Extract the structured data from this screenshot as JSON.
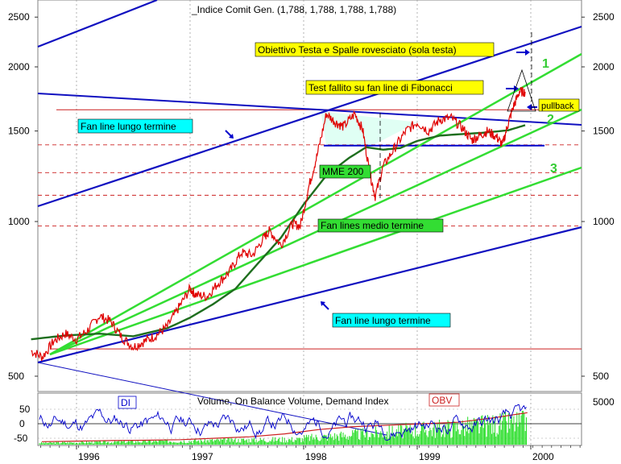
{
  "colors": {
    "price": "#e00000",
    "ema": "#1e6e1e",
    "fan_long": "#1010c0",
    "fan_medium": "#33dd33",
    "resistance": "#cc2020",
    "neckline": "#0000cc",
    "label_yellow": "#ffff00",
    "label_cyan": "#00ffff",
    "label_green": "#33dd33",
    "demand": "#0000cc",
    "volume": "#22dd22",
    "obv": "#cc2020"
  },
  "chart_data": [
    {
      "type": "line",
      "title": "_Indice Comit Gen. (1,788, 1,788, 1,788, 1,788)",
      "scale": "log",
      "ylim": [
        480,
        2750
      ],
      "y_ticks": [
        500,
        1000,
        1500,
        2000,
        2500
      ],
      "x_ticks": [
        "1996",
        "1997",
        "1998",
        "1999",
        "2000"
      ],
      "grid": true,
      "series": [
        {
          "name": "MME 200",
          "points": [
            [
              1995.6,
              590
            ],
            [
              1995.9,
              600
            ],
            [
              1996.2,
              605
            ],
            [
              1996.5,
              598
            ],
            [
              1996.8,
              620
            ],
            [
              1997.0,
              650
            ],
            [
              1997.2,
              690
            ],
            [
              1997.4,
              740
            ],
            [
              1997.6,
              830
            ],
            [
              1997.8,
              930
            ],
            [
              1998.0,
              1080
            ],
            [
              1998.2,
              1230
            ],
            [
              1998.4,
              1330
            ],
            [
              1998.55,
              1395
            ],
            [
              1998.7,
              1380
            ],
            [
              1998.85,
              1390
            ],
            [
              1999.0,
              1435
            ],
            [
              1999.2,
              1470
            ],
            [
              1999.4,
              1480
            ],
            [
              1999.6,
              1490
            ],
            [
              1999.8,
              1505
            ],
            [
              1999.95,
              1540
            ]
          ]
        },
        {
          "name": "_Indice Comit Gen.",
          "points": [
            [
              1995.6,
              560
            ],
            [
              1995.7,
              545
            ],
            [
              1995.8,
              585
            ],
            [
              1995.9,
              605
            ],
            [
              1996.0,
              590
            ],
            [
              1996.1,
              615
            ],
            [
              1996.2,
              655
            ],
            [
              1996.3,
              640
            ],
            [
              1996.4,
              595
            ],
            [
              1996.5,
              570
            ],
            [
              1996.6,
              585
            ],
            [
              1996.7,
              600
            ],
            [
              1996.8,
              625
            ],
            [
              1996.9,
              680
            ],
            [
              1997.0,
              740
            ],
            [
              1997.05,
              720
            ],
            [
              1997.15,
              715
            ],
            [
              1997.25,
              760
            ],
            [
              1997.35,
              800
            ],
            [
              1997.45,
              870
            ],
            [
              1997.55,
              860
            ],
            [
              1997.65,
              930
            ],
            [
              1997.7,
              960
            ],
            [
              1997.8,
              900
            ],
            [
              1997.9,
              990
            ],
            [
              1997.97,
              980
            ],
            [
              1998.05,
              1180
            ],
            [
              1998.12,
              1350
            ],
            [
              1998.2,
              1620
            ],
            [
              1998.28,
              1560
            ],
            [
              1998.35,
              1530
            ],
            [
              1998.45,
              1620
            ],
            [
              1998.52,
              1510
            ],
            [
              1998.58,
              1250
            ],
            [
              1998.63,
              1120
            ],
            [
              1998.7,
              1280
            ],
            [
              1998.8,
              1390
            ],
            [
              1998.9,
              1500
            ],
            [
              1999.0,
              1560
            ],
            [
              1999.1,
              1500
            ],
            [
              1999.2,
              1580
            ],
            [
              1999.3,
              1590
            ],
            [
              1999.4,
              1520
            ],
            [
              1999.48,
              1440
            ],
            [
              1999.55,
              1470
            ],
            [
              1999.62,
              1500
            ],
            [
              1999.7,
              1460
            ],
            [
              1999.75,
              1410
            ],
            [
              1999.8,
              1550
            ],
            [
              1999.85,
              1680
            ],
            [
              1999.9,
              1790
            ],
            [
              1999.95,
              1788
            ]
          ]
        }
      ],
      "annotations": [
        "Obiettivo Testa e Spalle rovesciato (sola testa)",
        "Test fallito su fan line di Fibonacci",
        "pullback",
        "Fan line lungo termine",
        "MME 200",
        "Fan lines medio termine",
        "Fan line lungo termine",
        "1",
        "2",
        "3"
      ]
    },
    {
      "type": "line",
      "title": "Volume, On Balance Volume, Demand Index",
      "y_ticks_left": [
        50,
        0,
        -50
      ],
      "y_ticks_right": [
        5000
      ],
      "legend": [
        "DI",
        "OBV"
      ],
      "series": [
        {
          "name": "Volume",
          "style": "green bars growing through 1998-1999"
        },
        {
          "name": "OBV",
          "values": [
            -62,
            -60,
            -58,
            -57,
            -55,
            -50,
            -45,
            -35,
            -20,
            -10,
            -5,
            0,
            5,
            20,
            38
          ]
        },
        {
          "name": "DI",
          "style": "oscillating between -60 and 80"
        }
      ]
    }
  ],
  "labels": {
    "title": "_Indice Comit Gen. (1,788, 1,788, 1,788, 1,788)",
    "target": "Obiettivo Testa e Spalle rovesciato (sola testa)",
    "test_failed": "Test fallito  su fan line di Fibonacci",
    "pullback": "pullback",
    "fan_long_top": "Fan line lungo termine",
    "fan_long_bottom": "Fan line lungo termine",
    "mme": "MME 200",
    "fan_medium": "Fan lines medio termine",
    "n1": "1",
    "n2": "2",
    "n3": "3",
    "ind_title": "Volume, On Balance Volume, Demand Index",
    "di": "DI",
    "obv": "OBV"
  }
}
